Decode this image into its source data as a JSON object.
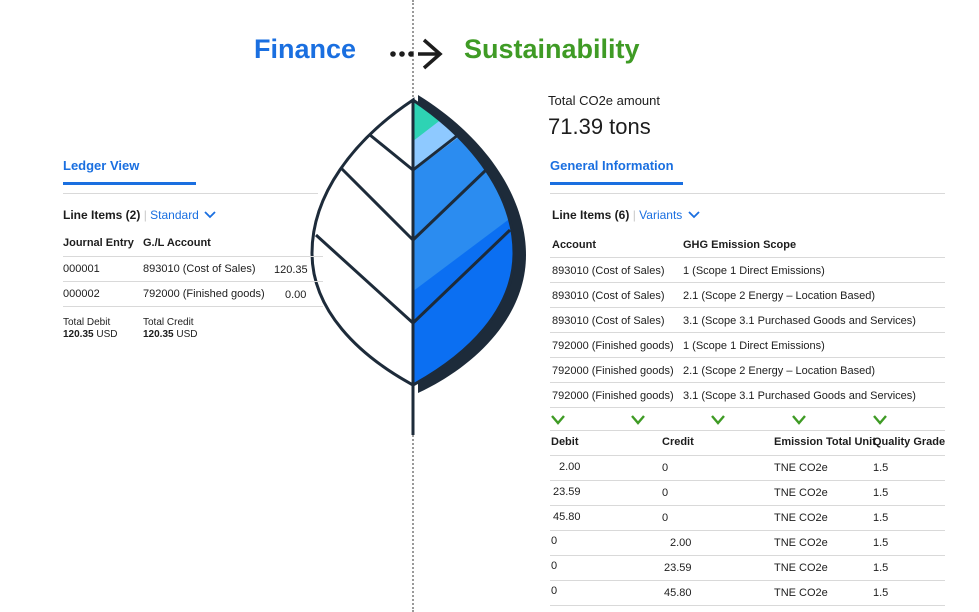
{
  "header": {
    "finance": "Finance",
    "sustainability": "Sustainability"
  },
  "ledger": {
    "tab": "Ledger View",
    "line_items": "Line Items (2)",
    "variant": "Standard",
    "columns": [
      "Journal Entry",
      "G./L Account"
    ],
    "rows": [
      {
        "entry": "000001",
        "account": "893010 (Cost of Sales)",
        "amount": "120.35"
      },
      {
        "entry": "000002",
        "account": "792000 (Finished goods)",
        "amount": "0.00"
      }
    ],
    "total_debit_label": "Total Debit",
    "total_debit_value": "120.35",
    "total_debit_unit": "USD",
    "total_credit_label": "Total Credit",
    "total_credit_value": "120.35",
    "total_credit_unit": "USD"
  },
  "sustainability": {
    "total_label": "Total CO2e amount",
    "total_value": "71.39 tons",
    "tab": "General Information",
    "line_items": "Line Items (6)",
    "variant": "Variants",
    "columns": [
      "Account",
      "GHG Emission Scope"
    ],
    "rows": [
      {
        "account": "893010 (Cost of Sales)",
        "scope": "1 (Scope 1 Direct Emissions)"
      },
      {
        "account": "893010 (Cost of Sales)",
        "scope": "2.1 (Scope 2 Energy – Location Based)"
      },
      {
        "account": "893010 (Cost of Sales)",
        "scope": "3.1 (Scope 3.1 Purchased Goods and Services)"
      },
      {
        "account": "792000 (Finished goods)",
        "scope": "1 (Scope 1 Direct Emissions)"
      },
      {
        "account": "792000 (Finished goods)",
        "scope": "2.1 (Scope 2 Energy – Location Based)"
      },
      {
        "account": "792000 (Finished goods)",
        "scope": "3.1 (Scope 3.1 Purchased Goods and Services)"
      }
    ],
    "columns2": [
      "Debit",
      "Credit",
      "Emission Total Unit",
      "Quality Grade"
    ],
    "rows2": [
      {
        "debit": "2.00",
        "credit": "0",
        "unit": "TNE CO2e",
        "grade": "1.5"
      },
      {
        "debit": "23.59",
        "credit": "0",
        "unit": "TNE CO2e",
        "grade": "1.5"
      },
      {
        "debit": "45.80",
        "credit": "0",
        "unit": "TNE CO2e",
        "grade": "1.5"
      },
      {
        "debit": "0",
        "credit": "2.00",
        "unit": "TNE CO2e",
        "grade": "1.5"
      },
      {
        "debit": "0",
        "credit": "23.59",
        "unit": "TNE CO2e",
        "grade": "1.5"
      },
      {
        "debit": "0",
        "credit": "45.80",
        "unit": "TNE CO2e",
        "grade": "1.5"
      }
    ]
  },
  "colors": {
    "finance": "#1a6fe0",
    "sustainability": "#3f9b25",
    "leaf_teal": "#2ed3b4",
    "leaf_light_blue": "#8ec9ff",
    "leaf_mid_blue": "#2b8cf0",
    "leaf_dark_blue": "#0b6ff2",
    "leaf_outline": "#1d2b3a"
  },
  "icons": [
    "dotted-arrow-icon",
    "chevron-down-icon",
    "leaf-illustration"
  ]
}
